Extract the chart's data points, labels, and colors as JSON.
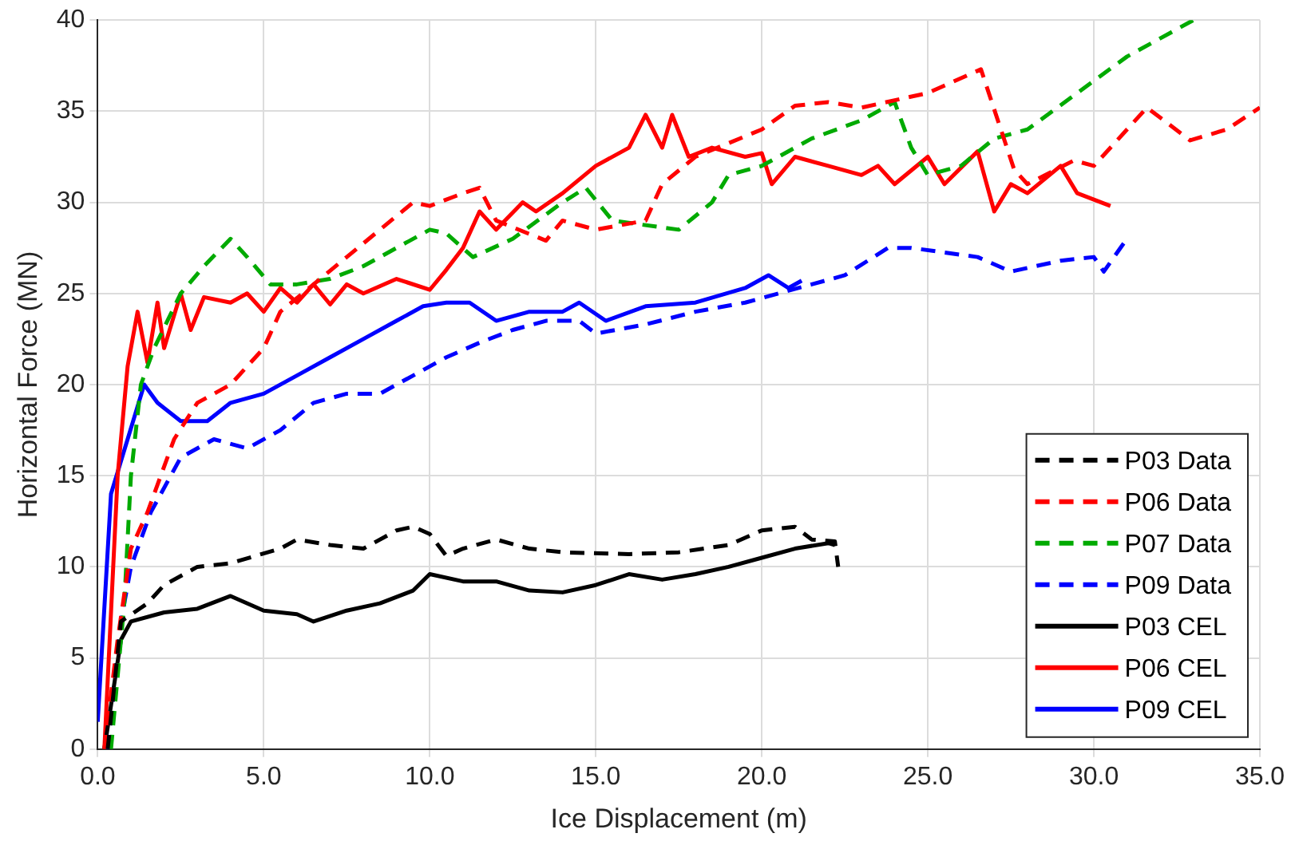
{
  "chart_data": {
    "type": "line",
    "xlabel": "Ice Displacement (m)",
    "ylabel": "Horizontal Force (MN)",
    "xlim": [
      0,
      35
    ],
    "xticks": [
      {
        "value": 0,
        "label": "0.0"
      },
      {
        "value": 5,
        "label": "5.0"
      },
      {
        "value": 10,
        "label": "10.0"
      },
      {
        "value": 15,
        "label": "15.0"
      },
      {
        "value": 20,
        "label": "20.0"
      },
      {
        "value": 25,
        "label": "25.0"
      },
      {
        "value": 30,
        "label": "30.0"
      },
      {
        "value": 35,
        "label": "35.0"
      }
    ],
    "ylim": [
      0,
      40
    ],
    "yticks": [
      0,
      5,
      10,
      15,
      20,
      25,
      30,
      35,
      40
    ],
    "grid": true,
    "legend": "bottom right",
    "marker": "none",
    "series": [
      {
        "name": "P03 Data",
        "color": "#000000",
        "line_style": "dashed",
        "x": [
          0.3,
          0.7,
          1.5,
          2,
          3,
          4,
          5.5,
          6,
          7,
          8,
          9,
          9.5,
          10,
          10.5,
          11,
          12,
          13,
          14,
          16,
          17.5,
          19,
          20,
          21,
          21.5,
          22.2,
          22.3
        ],
        "values": [
          0,
          7,
          8,
          9,
          10,
          10.2,
          11,
          11.5,
          11.2,
          11,
          12,
          12.2,
          11.8,
          10.6,
          11,
          11.5,
          11,
          10.8,
          10.7,
          10.8,
          11.2,
          12,
          12.2,
          11.5,
          11.4,
          10
        ]
      },
      {
        "name": "P06 Data",
        "color": "#ff0000",
        "line_style": "dashed",
        "x": [
          0.2,
          0.6,
          1,
          1.5,
          2.3,
          3,
          4,
          5,
          5.5,
          6.5,
          7.5,
          8.5,
          9.5,
          10,
          11,
          11.5,
          12,
          13.5,
          14,
          15,
          16.5,
          17,
          18,
          20,
          21,
          22,
          23,
          25,
          26.6,
          27.6,
          28,
          29.4,
          30,
          31.6,
          32.9,
          34,
          35
        ],
        "values": [
          0,
          6,
          11,
          13,
          17,
          19,
          20,
          22,
          24,
          25.5,
          27,
          28.5,
          30,
          29.8,
          30.5,
          30.8,
          29,
          27.9,
          29,
          28.5,
          29,
          31,
          32.5,
          34,
          35.3,
          35.5,
          35.2,
          36,
          37.3,
          31.8,
          31,
          32.3,
          32,
          35.2,
          33.4,
          34,
          35.2
        ]
      },
      {
        "name": "P07 Data",
        "color": "#00aa00",
        "line_style": "dashed",
        "x": [
          0.4,
          0.8,
          1,
          1.3,
          1.7,
          2.5,
          3.2,
          4,
          4.5,
          5.2,
          6,
          7,
          8,
          9,
          10,
          10.5,
          11.3,
          12.5,
          14,
          14.7,
          15.5,
          17.5,
          18.5,
          19,
          20,
          21.5,
          23,
          24,
          24.5,
          25,
          26,
          27,
          28,
          29.5,
          31,
          32.5,
          33
        ],
        "values": [
          0,
          8,
          15,
          20,
          22,
          25,
          26.5,
          28,
          27,
          25.5,
          25.5,
          25.8,
          26.5,
          27.5,
          28.5,
          28.3,
          27,
          28,
          30,
          30.8,
          29,
          28.5,
          30,
          31.5,
          32,
          33.5,
          34.5,
          35.5,
          33,
          31.5,
          32,
          33.5,
          34,
          36,
          38,
          39.5,
          40
        ]
      },
      {
        "name": "P09 Data",
        "color": "#0000ff",
        "line_style": "dashed",
        "x": [
          0.3,
          0.7,
          1,
          1.6,
          2.5,
          3.5,
          4.5,
          5.5,
          6.5,
          7.5,
          8.5,
          9.5,
          10.5,
          11.5,
          12.5,
          13.5,
          14.5,
          15,
          16.5,
          18,
          19.5,
          20.5,
          21.5,
          22.5,
          23.8,
          24.5,
          26.5,
          27.5,
          29,
          30,
          30.3,
          30.8,
          31
        ],
        "values": [
          0,
          7,
          10,
          13,
          16,
          17,
          16.5,
          17.5,
          19,
          19.5,
          19.5,
          20.5,
          21.5,
          22.3,
          23,
          23.5,
          23.5,
          22.8,
          23.3,
          24,
          24.5,
          25,
          25.5,
          26,
          27.5,
          27.5,
          27,
          26.2,
          26.8,
          27,
          26.2,
          27.5,
          28
        ]
      },
      {
        "name": "P03 CEL",
        "color": "#000000",
        "line_style": "solid",
        "x": [
          0.2,
          0.7,
          1,
          2,
          3,
          4,
          5,
          6,
          6.5,
          7.5,
          8.5,
          9.5,
          10,
          11,
          12,
          13,
          14,
          15,
          16,
          17,
          18,
          19,
          20,
          21,
          22,
          22.2
        ],
        "values": [
          0,
          6,
          7,
          7.5,
          7.7,
          8.4,
          7.6,
          7.4,
          7,
          7.6,
          8,
          8.7,
          9.6,
          9.2,
          9.2,
          8.7,
          8.6,
          9,
          9.6,
          9.3,
          9.6,
          10,
          10.5,
          11,
          11.3,
          11.2
        ]
      },
      {
        "name": "P06 CEL",
        "color": "#ff0000",
        "line_style": "solid",
        "x": [
          0.2,
          0.6,
          0.9,
          1.2,
          1.5,
          1.8,
          2,
          2.5,
          2.8,
          3.2,
          4,
          4.5,
          5,
          5.5,
          6,
          6.5,
          7,
          7.5,
          8,
          9,
          10,
          10.5,
          11,
          11.5,
          12,
          12.8,
          13.2,
          14,
          15,
          16,
          16.5,
          17,
          17.3,
          17.8,
          18.5,
          19.5,
          20,
          20.3,
          21,
          22,
          23,
          23.5,
          24,
          25,
          25.5,
          26.5,
          27,
          27.5,
          28,
          29,
          29.5,
          30.5
        ],
        "values": [
          0,
          15,
          21,
          24,
          21.2,
          24.5,
          22,
          25,
          23,
          24.8,
          24.5,
          25,
          24,
          25.3,
          24.5,
          25.5,
          24.4,
          25.5,
          25,
          25.8,
          25.2,
          26.3,
          27.5,
          29.5,
          28.5,
          30,
          29.5,
          30.5,
          32,
          33,
          34.8,
          33,
          34.8,
          32.5,
          33,
          32.5,
          32.7,
          31,
          32.5,
          32,
          31.5,
          32,
          31,
          32.5,
          31,
          32.8,
          29.5,
          31,
          30.5,
          32,
          30.5,
          29.8
        ]
      },
      {
        "name": "P09 CEL",
        "color": "#0000ff",
        "line_style": "solid",
        "x": [
          0,
          0.4,
          0.9,
          1.4,
          1.8,
          2.5,
          3.3,
          4,
          5,
          6,
          7,
          8,
          9,
          9.8,
          10.5,
          11.2,
          12,
          13,
          14,
          14.5,
          15.3,
          16.5,
          18,
          19.5,
          20.2,
          20.8,
          21.2
        ],
        "values": [
          1.5,
          14,
          17,
          20,
          19,
          18,
          18,
          19,
          19.5,
          20.5,
          21.5,
          22.5,
          23.5,
          24.3,
          24.5,
          24.5,
          23.5,
          24,
          24,
          24.5,
          23.5,
          24.3,
          24.5,
          25.3,
          26,
          25.3,
          25.7
        ]
      }
    ]
  }
}
